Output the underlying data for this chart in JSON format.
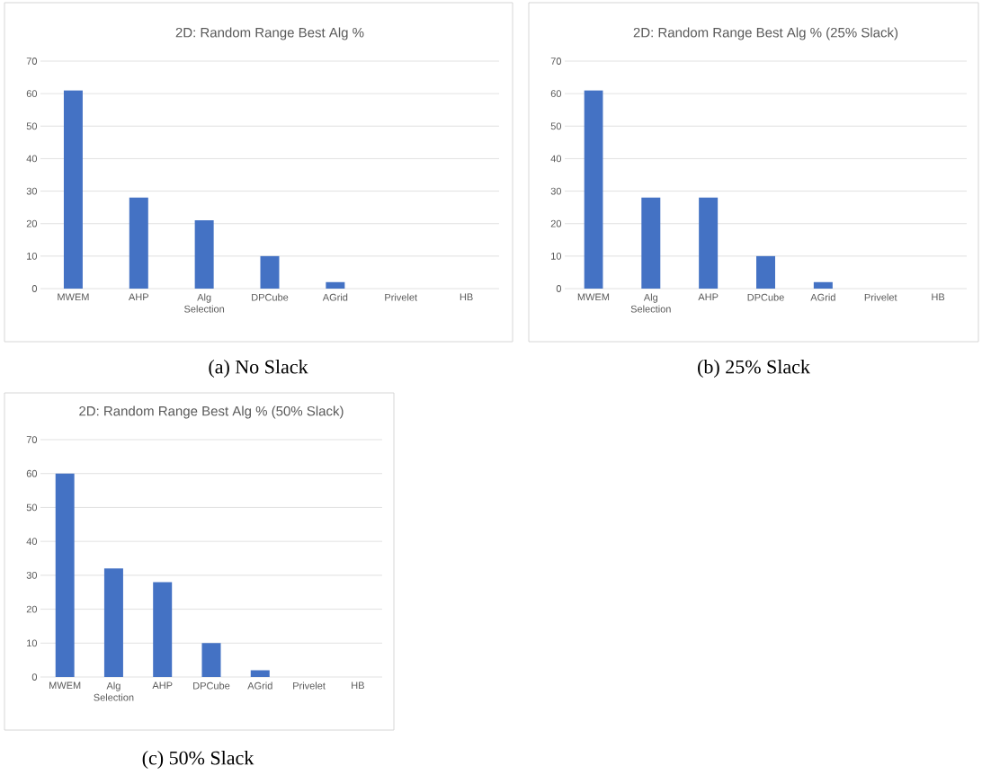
{
  "chart_data": [
    {
      "type": "bar",
      "title": "2D: Random Range Best Alg %",
      "categories": [
        "MWEM",
        "AHP",
        "Alg Selection",
        "DPCube",
        "AGrid",
        "Privelet",
        "HB"
      ],
      "values": [
        61,
        28,
        21,
        10,
        2,
        0,
        0
      ],
      "color": "#4472c4",
      "ylim": [
        0,
        70
      ],
      "yticks": [
        0,
        10,
        20,
        30,
        40,
        50,
        60,
        70
      ],
      "grid": "y",
      "annotations": [
        "(a) No Slack"
      ]
    },
    {
      "type": "bar",
      "title": "2D: Random Range Best Alg % (25% Slack)",
      "categories": [
        "MWEM",
        "Alg Selection",
        "AHP",
        "DPCube",
        "AGrid",
        "Privelet",
        "HB"
      ],
      "values": [
        61,
        28,
        28,
        10,
        2,
        0,
        0
      ],
      "color": "#4472c4",
      "ylim": [
        0,
        70
      ],
      "yticks": [
        0,
        10,
        20,
        30,
        40,
        50,
        60,
        70
      ],
      "grid": "y",
      "annotations": [
        "(b) 25% Slack"
      ]
    },
    {
      "type": "bar",
      "title": "2D: Random Range Best Alg % (50% Slack)",
      "categories": [
        "MWEM",
        "Alg Selection",
        "AHP",
        "DPCube",
        "AGrid",
        "Privelet",
        "HB"
      ],
      "values": [
        60,
        32,
        28,
        10,
        2,
        0,
        0
      ],
      "color": "#4472c4",
      "ylim": [
        0,
        70
      ],
      "yticks": [
        0,
        10,
        20,
        30,
        40,
        50,
        60,
        70
      ],
      "grid": "y",
      "annotations": [
        "(c) 50% Slack"
      ]
    }
  ]
}
